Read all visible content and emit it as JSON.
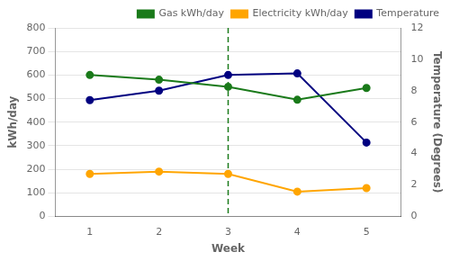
{
  "chart_data": {
    "type": "line",
    "x": [
      1,
      2,
      3,
      4,
      5
    ],
    "xlim": [
      0.5,
      5.5
    ],
    "xticks": [
      1,
      2,
      3,
      4,
      5
    ],
    "xlabel": "Week",
    "ylabel": "kWh/day",
    "y2label": "Temperature (Degrees)",
    "ylim": [
      0,
      800
    ],
    "yticks": [
      0,
      100,
      200,
      300,
      400,
      500,
      600,
      700,
      800
    ],
    "y2lim": [
      0,
      12
    ],
    "y2ticks": [
      0,
      2,
      4,
      6,
      8,
      10,
      12
    ],
    "series": [
      {
        "name": "Gas kWh/day",
        "color": "#1a7a1a",
        "values": [
          600,
          580,
          550,
          495,
          545
        ],
        "marker": "circle",
        "line_style": "solid"
      },
      {
        "name": "Electricity kWh/day",
        "color": "#FFA500",
        "values": [
          180,
          190,
          180,
          105,
          120
        ],
        "marker": "circle",
        "line_style": "solid"
      },
      {
        "name": "Temperature",
        "color": "#000080",
        "values": [
          7.4,
          8.0,
          9.0,
          9.1,
          4.7
        ],
        "marker": "circle",
        "line_style": "solid",
        "axis": "y2"
      }
    ],
    "vlines": [
      {
        "x": 3,
        "color": "#1a7a1a"
      }
    ],
    "grid": true,
    "legend": "upper right"
  }
}
